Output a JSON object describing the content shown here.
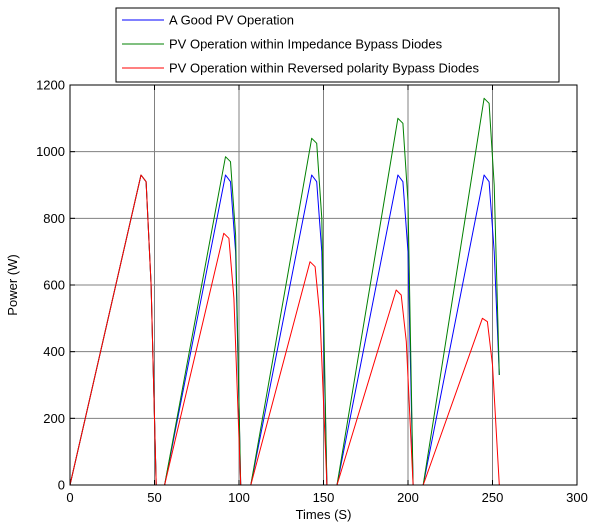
{
  "chart_data": {
    "type": "line",
    "title": "",
    "xlabel": "Times (S)",
    "ylabel": "Power (W)",
    "xlim": [
      0,
      300
    ],
    "ylim": [
      0,
      1200
    ],
    "xticks": [
      0,
      50,
      100,
      150,
      200,
      250,
      300
    ],
    "yticks": [
      0,
      200,
      400,
      600,
      800,
      1000,
      1200
    ],
    "grid": true,
    "legend_position": "top",
    "series": [
      {
        "name": "A Good PV Operation",
        "color": "#0000ff",
        "x": [
          0,
          42,
          45,
          48,
          51,
          52,
          56,
          92,
          95,
          98,
          101,
          103,
          107,
          143,
          146,
          149,
          152,
          154,
          158,
          194,
          197,
          200,
          203,
          205,
          209,
          245,
          248,
          251,
          254
        ],
        "y": [
          0,
          930,
          910,
          600,
          0,
          0,
          0,
          930,
          910,
          700,
          0,
          0,
          0,
          930,
          910,
          700,
          0,
          0,
          0,
          930,
          910,
          700,
          0,
          0,
          0,
          930,
          910,
          700,
          330
        ]
      },
      {
        "name": "PV Operation within Impedance Bypass Diodes",
        "color": "#008000",
        "x": [
          0,
          42,
          45,
          48,
          51,
          52,
          56,
          92,
          95,
          98,
          101,
          103,
          107,
          143,
          146,
          149,
          152,
          154,
          158,
          194,
          197,
          200,
          203,
          205,
          209,
          245,
          248,
          251,
          254
        ],
        "y": [
          0,
          930,
          910,
          600,
          0,
          0,
          0,
          985,
          970,
          750,
          0,
          0,
          0,
          1040,
          1025,
          800,
          0,
          0,
          0,
          1100,
          1085,
          850,
          0,
          0,
          0,
          1160,
          1145,
          900,
          330
        ]
      },
      {
        "name": "PV Operation within Reversed polarity Bypass Diodes",
        "color": "#ff0000",
        "x": [
          0,
          42,
          45,
          48,
          51,
          52,
          56,
          91,
          94,
          97,
          101,
          103,
          107,
          142,
          145,
          148,
          152,
          154,
          158,
          193,
          196,
          199,
          203,
          205,
          209,
          244,
          247,
          250,
          254
        ],
        "y": [
          0,
          930,
          910,
          600,
          0,
          0,
          0,
          755,
          740,
          560,
          0,
          0,
          0,
          670,
          655,
          500,
          0,
          0,
          0,
          585,
          570,
          430,
          0,
          0,
          0,
          500,
          490,
          360,
          0
        ]
      }
    ]
  }
}
